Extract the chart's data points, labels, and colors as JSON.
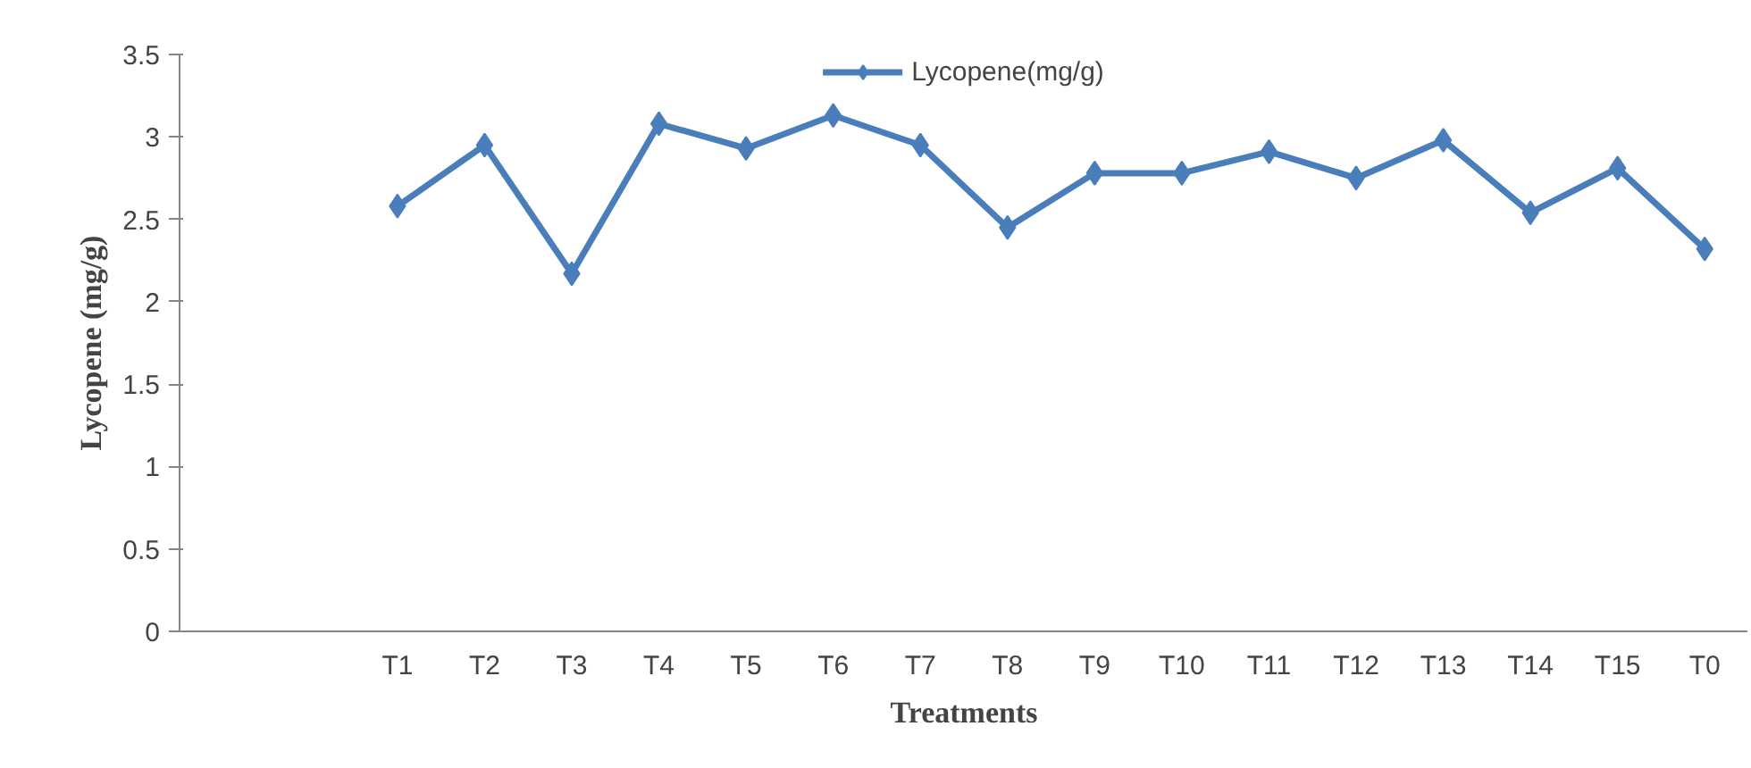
{
  "chart_data": {
    "type": "line",
    "xlabel": "Treatments",
    "ylabel": "Lycopene (mg/g)",
    "categories": [
      null,
      null,
      "T1",
      "T2",
      "T3",
      "T4",
      "T5",
      "T6",
      "T7",
      "T8",
      "T9",
      "T10",
      "T11",
      "T12",
      "T13",
      "T14",
      "T15",
      "T0"
    ],
    "series": [
      {
        "name": "Lycopene(mg/g)",
        "color": "#4a7ebb",
        "values": [
          null,
          null,
          2.58,
          2.95,
          2.17,
          3.08,
          2.93,
          3.13,
          2.95,
          2.45,
          2.78,
          2.78,
          2.91,
          2.75,
          2.98,
          2.54,
          2.81,
          2.32
        ]
      }
    ],
    "ylim": [
      0,
      3.5
    ],
    "yticks": [
      0,
      0.5,
      1,
      1.5,
      2,
      2.5,
      3,
      3.5
    ],
    "grid": false,
    "legend": "top",
    "marker": "diamond",
    "line_style": "solid"
  }
}
